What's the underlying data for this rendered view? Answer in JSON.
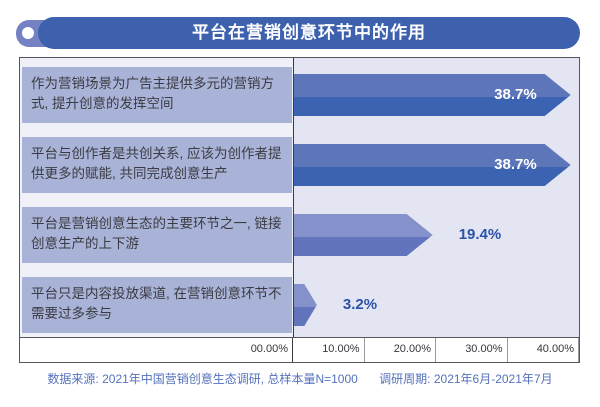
{
  "title_bar": {
    "title": "平台在营销创意环节中的作用"
  },
  "colors": {
    "title_bg": "#3E61AE",
    "title_deco": "#7482C3",
    "left_col_bg": "#F0F1F8",
    "plot_bg": "#E3E6F2",
    "category_box": "#A9B3D7",
    "footer_text": "#5471BD",
    "inside_value_text": "#FFFFFF",
    "outside_value_text": "#2B52A8"
  },
  "chart_data": {
    "type": "bar",
    "orientation": "horizontal",
    "title": "平台在营销创意环节中的作用",
    "categories": [
      "作为营销场景为广告主提供多元的营销方式, 提升创意的发挥空间",
      "平台与创作者是共创关系, 应该为创作者提供更多的赋能, 共同完成创意生产",
      "平台是营销创意生态的主要环节之一, 链接创意生产的上下游",
      "平台只是内容投放渠道, 在营销创意环节不需要过多参与"
    ],
    "values": [
      38.7,
      38.7,
      19.4,
      3.2
    ],
    "value_labels": [
      "38.7%",
      "38.7%",
      "19.4%",
      "3.2%"
    ],
    "x_tick_labels": [
      "00.00%",
      "10.00%",
      "20.00%",
      "30.00%",
      "40.00%"
    ],
    "xlim": [
      0,
      40
    ],
    "grid": false,
    "legend": false,
    "bar_shape": "arrow",
    "bar_styles": [
      {
        "color_top": "#5D76B9",
        "color_bottom": "#3B63B1",
        "value_position": "inside",
        "value_color": "#FFFFFF"
      },
      {
        "color_top": "#5D76B9",
        "color_bottom": "#3B63B1",
        "value_position": "inside",
        "value_color": "#FFFFFF"
      },
      {
        "color_top": "#8491CA",
        "color_bottom": "#6274BC",
        "value_position": "outside",
        "value_color": "#2B52A8"
      },
      {
        "color_top": "#8491CA",
        "color_bottom": "#6274BC",
        "value_position": "outside",
        "value_color": "#2B52A8"
      }
    ]
  },
  "footer": {
    "source": "数据来源: 2021年中国营销创意生态调研, 总样本量N=1000",
    "period": "调研周期: 2021年6月-2021年7月"
  }
}
